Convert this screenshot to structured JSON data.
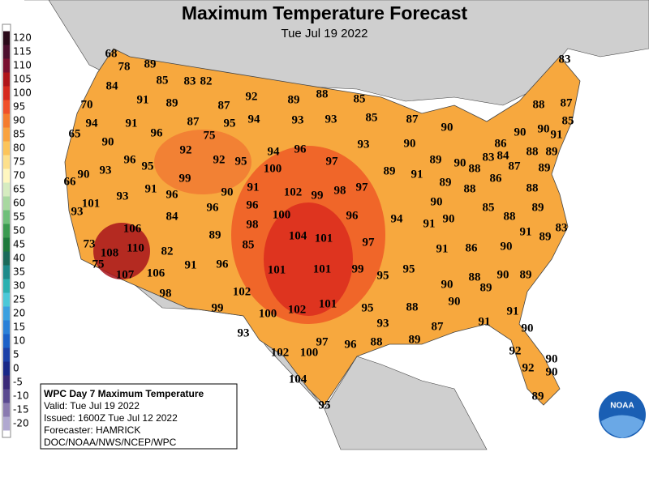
{
  "header": {
    "title": "Maximum Temperature Forecast",
    "subtitle": "Tue Jul 19 2022"
  },
  "legend": [
    {
      "value": 120,
      "color": "#2b0a1a"
    },
    {
      "value": 115,
      "color": "#4d0f2e"
    },
    {
      "value": 110,
      "color": "#7a1030"
    },
    {
      "value": 105,
      "color": "#b0151a"
    },
    {
      "value": 100,
      "color": "#d62a1f"
    },
    {
      "value": 95,
      "color": "#f0502a"
    },
    {
      "value": 90,
      "color": "#f57c2e"
    },
    {
      "value": 85,
      "color": "#f9a23f"
    },
    {
      "value": 80,
      "color": "#fcc45a"
    },
    {
      "value": 75,
      "color": "#fde08b"
    },
    {
      "value": 70,
      "color": "#fff7c0"
    },
    {
      "value": 65,
      "color": "#d6ecc0"
    },
    {
      "value": 60,
      "color": "#a8d8a0"
    },
    {
      "value": 55,
      "color": "#6fbf7a"
    },
    {
      "value": 50,
      "color": "#3a9a50"
    },
    {
      "value": 45,
      "color": "#1e7a3c"
    },
    {
      "value": 40,
      "color": "#1a6a5a"
    },
    {
      "value": 35,
      "color": "#1c8a8a"
    },
    {
      "value": 30,
      "color": "#2ab0b0"
    },
    {
      "value": 25,
      "color": "#4ac8d8"
    },
    {
      "value": 20,
      "color": "#3aa0e0"
    },
    {
      "value": 15,
      "color": "#2a80d8"
    },
    {
      "value": 10,
      "color": "#1a60c8"
    },
    {
      "value": 5,
      "color": "#1a40a8"
    },
    {
      "value": 0,
      "color": "#182888"
    },
    {
      "value": -5,
      "color": "#3a2a78"
    },
    {
      "value": -10,
      "color": "#5a4a90"
    },
    {
      "value": -15,
      "color": "#8a7ab0"
    },
    {
      "value": -20,
      "color": "#b0a8d0"
    }
  ],
  "info": {
    "heading": "WPC Day 7 Maximum Temperature",
    "valid": "Valid: Tue Jul 19 2022",
    "issued": "Issued: 1600Z Tue Jul 12 2022",
    "forecaster": "Forecaster: HAMRICK",
    "source": "DOC/NOAA/NWS/NCEP/WPC"
  },
  "logo": "NOAA",
  "temperatures": [
    68,
    78,
    89,
    84,
    85,
    83,
    82,
    91,
    89,
    87,
    92,
    89,
    88,
    85,
    70,
    94,
    91,
    96,
    87,
    95,
    94,
    93,
    93,
    85,
    87,
    65,
    90,
    75,
    92,
    94,
    96,
    93,
    90,
    90,
    83,
    88,
    87,
    85,
    91,
    90,
    90,
    86,
    84,
    83,
    88,
    89,
    96,
    95,
    92,
    95,
    100,
    97,
    89,
    91,
    89,
    90,
    88,
    87,
    89,
    66,
    90,
    93,
    99,
    91,
    96,
    90,
    91,
    102,
    99,
    98,
    97,
    89,
    88,
    86,
    88,
    101,
    93,
    90,
    85,
    89,
    93,
    84,
    96,
    96,
    100,
    96,
    94,
    91,
    90,
    88,
    83,
    106,
    98,
    89,
    104,
    101,
    97,
    91,
    89,
    73,
    110,
    108,
    82,
    85,
    91,
    86,
    90,
    75,
    91,
    96,
    101,
    101,
    99,
    95,
    95,
    107,
    106,
    88,
    89,
    90,
    89,
    98,
    102,
    90,
    90,
    88,
    100,
    102,
    101,
    95,
    99,
    93,
    87,
    91,
    91,
    90,
    93,
    89,
    88,
    97,
    96,
    102,
    100,
    92,
    90,
    92,
    90,
    104,
    89,
    95
  ]
}
